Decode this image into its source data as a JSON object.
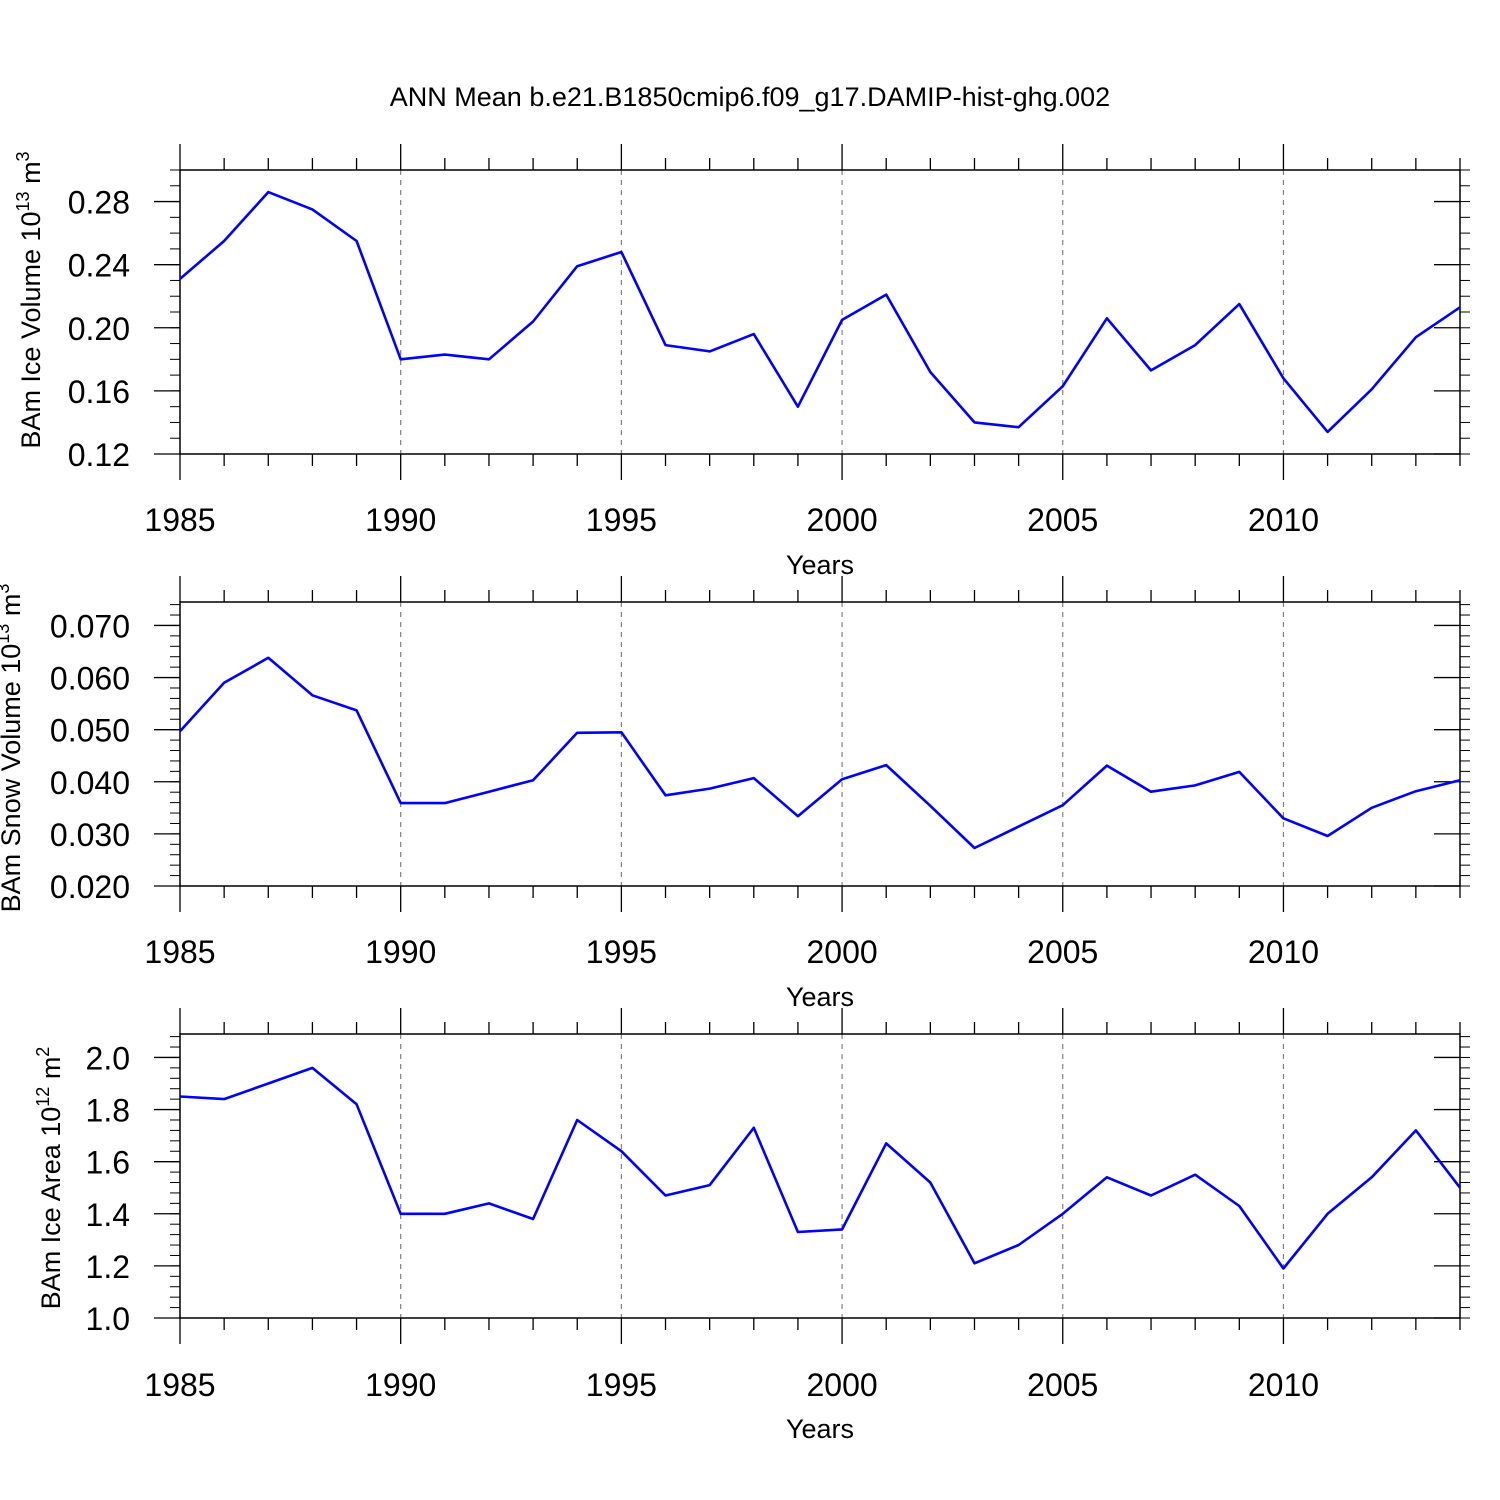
{
  "title": "ANN Mean b.e21.B1850cmip6.f09_g17.DAMIP-hist-ghg.002",
  "colors": {
    "line": "#0000ff",
    "axis": "#000000",
    "grid": "#808080"
  },
  "chart_data": [
    {
      "type": "line",
      "ylabel_main": "BAm Ice Volume 10",
      "ylabel_exp": "13",
      "ylabel_unit": " m",
      "ylabel_unit_exp": "3",
      "xlabel": "Years",
      "xlim": [
        1985,
        2014
      ],
      "ylim": [
        0.12,
        0.3
      ],
      "yticks": [
        0.12,
        0.16,
        0.2,
        0.24,
        0.28
      ],
      "yticklabels": [
        "0.12",
        "0.16",
        "0.20",
        "0.24",
        "0.28"
      ],
      "yminor_step": 0.01,
      "xticks": [
        1985,
        1990,
        1995,
        2000,
        2005,
        2010
      ],
      "xticklabels": [
        "1985",
        "1990",
        "1995",
        "2000",
        "2005",
        "2010"
      ],
      "x": [
        1985,
        1986,
        1987,
        1988,
        1989,
        1990,
        1991,
        1992,
        1993,
        1994,
        1995,
        1996,
        1997,
        1998,
        1999,
        2000,
        2001,
        2002,
        2003,
        2004,
        2005,
        2006,
        2007,
        2008,
        2009,
        2010,
        2011,
        2012,
        2013,
        2014
      ],
      "values": [
        0.231,
        0.255,
        0.286,
        0.275,
        0.255,
        0.18,
        0.183,
        0.18,
        0.204,
        0.239,
        0.248,
        0.189,
        0.185,
        0.196,
        0.15,
        0.205,
        0.221,
        0.172,
        0.14,
        0.137,
        0.163,
        0.206,
        0.173,
        0.189,
        0.215,
        0.168,
        0.134,
        0.161,
        0.194,
        0.213
      ]
    },
    {
      "type": "line",
      "ylabel_main": "BAm Snow Volume 10",
      "ylabel_exp": "13",
      "ylabel_unit": " m",
      "ylabel_unit_exp": "3",
      "xlabel": "Years",
      "xlim": [
        1985,
        2014
      ],
      "ylim": [
        0.02,
        0.0745
      ],
      "yticks": [
        0.02,
        0.03,
        0.04,
        0.05,
        0.06,
        0.07
      ],
      "yticklabels": [
        "0.020",
        "0.030",
        "0.040",
        "0.050",
        "0.060",
        "0.070"
      ],
      "yminor_step": 0.002,
      "xticks": [
        1985,
        1990,
        1995,
        2000,
        2005,
        2010
      ],
      "xticklabels": [
        "1985",
        "1990",
        "1995",
        "2000",
        "2005",
        "2010"
      ],
      "x": [
        1985,
        1986,
        1987,
        1988,
        1989,
        1990,
        1991,
        1992,
        1993,
        1994,
        1995,
        1996,
        1997,
        1998,
        1999,
        2000,
        2001,
        2002,
        2003,
        2004,
        2005,
        2006,
        2007,
        2008,
        2009,
        2010,
        2011,
        2012,
        2013,
        2014
      ],
      "values": [
        0.0497,
        0.059,
        0.0638,
        0.0566,
        0.0537,
        0.0359,
        0.0359,
        0.0381,
        0.0403,
        0.0494,
        0.0495,
        0.0374,
        0.0387,
        0.0407,
        0.0334,
        0.0405,
        0.0432,
        0.0354,
        0.0273,
        0.0314,
        0.0355,
        0.0431,
        0.0381,
        0.0393,
        0.0419,
        0.033,
        0.0296,
        0.035,
        0.0382,
        0.0403
      ]
    },
    {
      "type": "line",
      "ylabel_main": "BAm Ice Area 10",
      "ylabel_exp": "12",
      "ylabel_unit": " m",
      "ylabel_unit_exp": "2",
      "xlabel": "Years",
      "xlim": [
        1985,
        2014
      ],
      "ylim": [
        1.0,
        2.09
      ],
      "yticks": [
        1.0,
        1.2,
        1.4,
        1.6,
        1.8,
        2.0
      ],
      "yticklabels": [
        "1.0",
        "1.2",
        "1.4",
        "1.6",
        "1.8",
        "2.0"
      ],
      "yminor_step": 0.04,
      "xticks": [
        1985,
        1990,
        1995,
        2000,
        2005,
        2010
      ],
      "xticklabels": [
        "1985",
        "1990",
        "1995",
        "2000",
        "2005",
        "2010"
      ],
      "x": [
        1985,
        1986,
        1987,
        1988,
        1989,
        1990,
        1991,
        1992,
        1993,
        1994,
        1995,
        1996,
        1997,
        1998,
        1999,
        2000,
        2001,
        2002,
        2003,
        2004,
        2005,
        2006,
        2007,
        2008,
        2009,
        2010,
        2011,
        2012,
        2013,
        2014
      ],
      "values": [
        1.85,
        1.84,
        1.9,
        1.96,
        1.82,
        1.4,
        1.4,
        1.44,
        1.38,
        1.76,
        1.64,
        1.47,
        1.51,
        1.73,
        1.33,
        1.34,
        1.67,
        1.52,
        1.21,
        1.28,
        1.4,
        1.54,
        1.47,
        1.55,
        1.43,
        1.19,
        1.4,
        1.54,
        1.72,
        1.5
      ]
    }
  ]
}
